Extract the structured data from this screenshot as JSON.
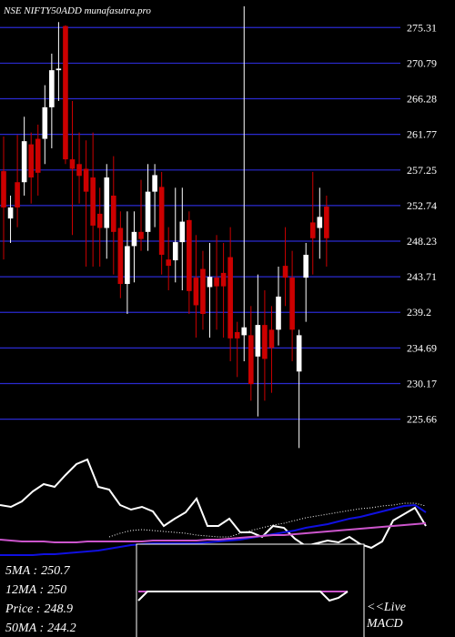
{
  "chart_data": [
    {
      "type": "candlestick",
      "title": "NSE NIFTY50ADD munafasutra.pro",
      "open": [
        257.1,
        251.1,
        255.7,
        255.7,
        260.5,
        261.2,
        261.2,
        265.2,
        269.9,
        275.5,
        258.6,
        258.0,
        257.4,
        256.3,
        251.7,
        249.9,
        254.0,
        249.9,
        242.8,
        247.6,
        249.4,
        249.4,
        254.5,
        255.1,
        245.9,
        245.8,
        248.1,
        250.9,
        243.6,
        244.7,
        242.4,
        243.6,
        244.2,
        246.2,
        236.7,
        236.3,
        236.3,
        233.6,
        237.6,
        237.0,
        237.0,
        245.1,
        243.6,
        231.7,
        243.6,
        250.6,
        249.9,
        252.6
      ],
      "high": [
        261.5,
        254.0,
        261.7,
        264.0,
        262.0,
        263.0,
        268.0,
        272.0,
        276.0,
        275.6,
        266.0,
        262.0,
        261.0,
        262.0,
        255.0,
        258.0,
        259.0,
        252.0,
        252.0,
        252.0,
        256.0,
        258.0,
        258.0,
        257.0,
        250.0,
        255.0,
        255.0,
        252.0,
        249.0,
        247.0,
        248.0,
        249.0,
        248.0,
        250.0,
        238.0,
        278.0,
        240.0,
        244.0,
        242.0,
        240.0,
        245.0,
        250.0,
        247.0,
        237.0,
        248.0,
        257.0,
        255.0,
        254.0
      ],
      "low": [
        245.9,
        248.0,
        250.0,
        254.0,
        253.0,
        254.0,
        258.0,
        260.0,
        266.0,
        258.0,
        249.0,
        253.0,
        245.0,
        245.0,
        245.0,
        246.0,
        244.0,
        241.0,
        239.0,
        243.0,
        247.0,
        247.0,
        250.0,
        244.0,
        242.0,
        243.0,
        242.0,
        239.0,
        236.0,
        237.0,
        236.0,
        237.0,
        236.0,
        233.0,
        231.0,
        233.0,
        228.0,
        226.0,
        228.0,
        229.0,
        235.0,
        240.0,
        233.0,
        222.0,
        238.0,
        244.0,
        246.0,
        245.0
      ],
      "close": [
        252.5,
        252.5,
        252.5,
        260.9,
        256.3,
        256.9,
        265.2,
        269.9,
        270.1,
        258.6,
        257.4,
        256.5,
        254.5,
        250.2,
        249.9,
        256.3,
        249.4,
        242.8,
        247.6,
        249.4,
        248.5,
        254.5,
        256.6,
        246.5,
        245.1,
        248.1,
        250.7,
        241.9,
        240.1,
        239.0,
        243.7,
        242.5,
        242.5,
        235.9,
        235.9,
        237.3,
        230.1,
        237.6,
        233.3,
        234.7,
        241.2,
        243.6,
        237.0,
        236.3,
        246.5,
        248.6,
        251.3,
        248.6
      ],
      "ylim": [
        224,
        278.8
      ],
      "yticks": [
        275.31,
        270.79,
        266.28,
        261.77,
        257.25,
        252.74,
        248.23,
        243.71,
        239.2,
        234.69,
        230.17,
        225.66
      ],
      "grid": true,
      "grid_color": "#2a2ad0",
      "up_color": "#ffffff",
      "down_color": "#cc0000"
    },
    {
      "type": "line",
      "ylim": [
        -20,
        120
      ],
      "series": [
        {
          "color": "#ffffff",
          "values": [
            45,
            43,
            49,
            60,
            68,
            65,
            78,
            90,
            95,
            65,
            62,
            45,
            40,
            43,
            38,
            22,
            30,
            37,
            52,
            22,
            22,
            30,
            15,
            15,
            10,
            22,
            20,
            8,
            0,
            3,
            6,
            4,
            10,
            2,
            -2,
            5,
            28,
            35,
            42,
            22
          ]
        },
        {
          "color": "#1010e0",
          "values": [
            -10,
            -10,
            -10,
            -10,
            -9,
            -9,
            -8,
            -7,
            -6,
            -5,
            -3,
            -1,
            1,
            2,
            3,
            3,
            3,
            3,
            3,
            4,
            5,
            6,
            7,
            9,
            11,
            13,
            15,
            17,
            20,
            22,
            24,
            27,
            30,
            32,
            35,
            38,
            41,
            44,
            45,
            37
          ]
        },
        {
          "color": "#cc55cc",
          "values": [
            7,
            6,
            5,
            5,
            5,
            4,
            4,
            4,
            5,
            5,
            5,
            5,
            5,
            5,
            6,
            6,
            6,
            6,
            6,
            7,
            7,
            8,
            9,
            10,
            11,
            12,
            12,
            13,
            14,
            15,
            16,
            17,
            18,
            19,
            20,
            21,
            22,
            23,
            24,
            25
          ]
        },
        {
          "color": "#ffffff",
          "dotted": true,
          "values": [
            null,
            null,
            null,
            null,
            null,
            null,
            null,
            null,
            null,
            null,
            10,
            14,
            17,
            18,
            17,
            16,
            15,
            14,
            12,
            11,
            10,
            10,
            14,
            17,
            20,
            23,
            25,
            28,
            31,
            33,
            35,
            37,
            39,
            41,
            42,
            44,
            45,
            47,
            47,
            44
          ]
        }
      ],
      "stats": [
        {
          "label": "5MA :",
          "value": 250.7
        },
        {
          "label": "12MA :",
          "value": 250
        },
        {
          "label": "Price  :",
          "value": 248.9
        },
        {
          "label": "50MA :",
          "value": 244.2
        }
      ]
    },
    {
      "type": "macd",
      "ylim": [
        0,
        102
      ],
      "label_lines": [
        "<<Live",
        "MACD"
      ],
      "series": [
        {
          "color": "#ffffff",
          "values": [
            40,
            50,
            50,
            50,
            50,
            50,
            50,
            50,
            50,
            50,
            50,
            50,
            50,
            50,
            50,
            50,
            50,
            50,
            50,
            50,
            50,
            40,
            43,
            50
          ]
        },
        {
          "color": "#cc55cc",
          "values": [
            50,
            50,
            50,
            50,
            50,
            50,
            50,
            50,
            50,
            50,
            50,
            50,
            50,
            50,
            50,
            50,
            50,
            50,
            50,
            50,
            50,
            50,
            50,
            50
          ]
        }
      ]
    }
  ]
}
